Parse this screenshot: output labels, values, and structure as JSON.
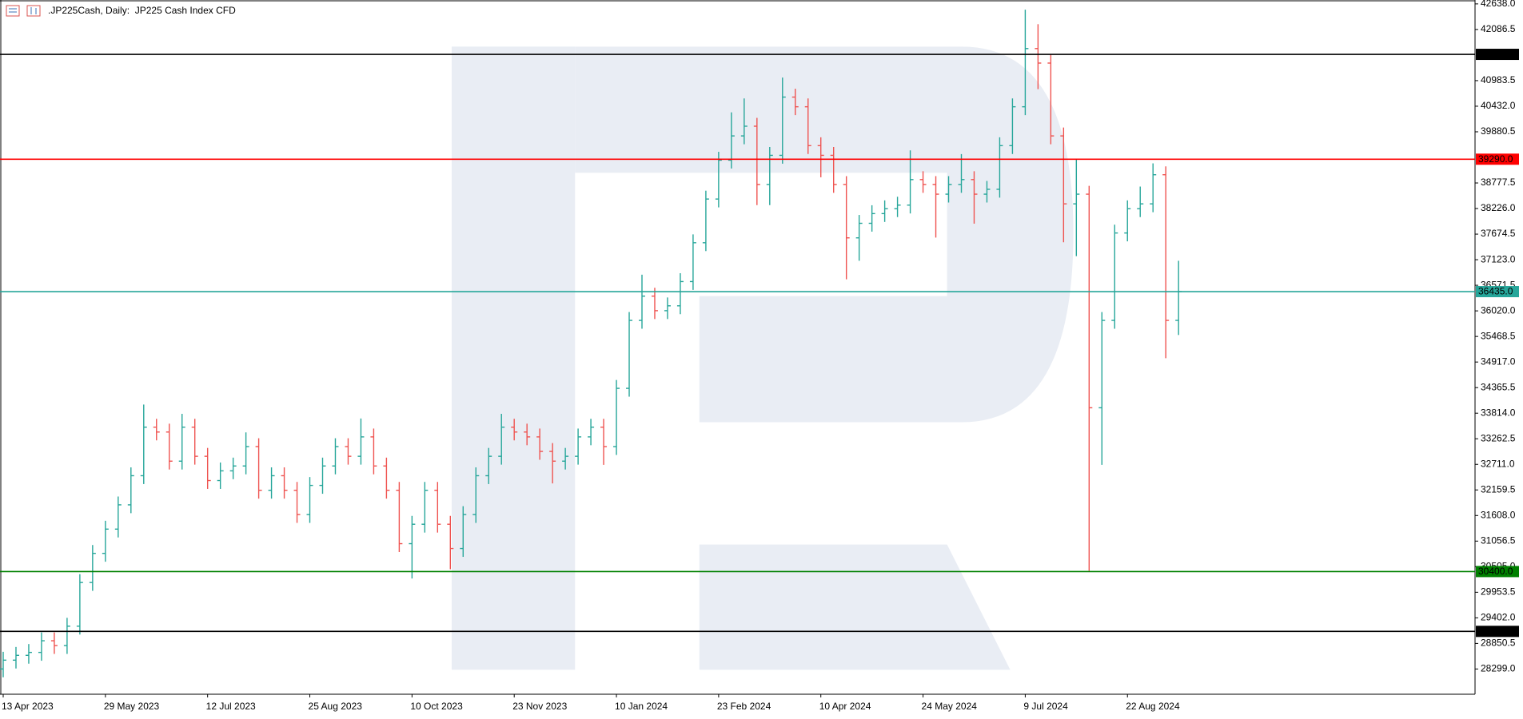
{
  "chart_data": {
    "type": "ohlc",
    "title": ".JP225Cash, Daily:  JP225 Cash Index CFD",
    "up_color": "#26a69a",
    "down_color": "#ef5350",
    "ylim": [
      27755,
      42722
    ],
    "yticks": [
      {
        "value": 42638,
        "label": "42638.0"
      },
      42086.5,
      40983.5,
      {
        "value": 40432,
        "label": "40432.0"
      },
      39880.5,
      38777.5,
      {
        "value": 38226,
        "label": "38226.0"
      },
      37674.5,
      {
        "value": 37123,
        "label": "37123.0"
      },
      36571.5,
      {
        "value": 36020,
        "label": "36020.0"
      },
      35468.5,
      {
        "value": 34917,
        "label": "34917.0"
      },
      34365.5,
      {
        "value": 33814,
        "label": "33814.0"
      },
      33262.5,
      {
        "value": 32711,
        "label": "32711.0"
      },
      32159.5,
      {
        "value": 31608,
        "label": "31608.0"
      },
      31056.5,
      {
        "value": 30505,
        "label": "30505.0"
      },
      29953.5,
      {
        "value": 29402,
        "label": "29402.0"
      },
      28850.5,
      {
        "value": 28299,
        "label": "28299.0"
      }
    ],
    "levels": [
      {
        "value": 41550,
        "label": "41550.0",
        "color": "#000000"
      },
      {
        "value": 39290,
        "label": "39290.0",
        "color": "#ff0000"
      },
      {
        "value": 36435,
        "label": "36435.0",
        "color": "#26a69a"
      },
      {
        "value": 30400,
        "label": "30400.0",
        "color": "#008000"
      },
      {
        "value": 29110,
        "label": "29110.0",
        "color": "#000000"
      }
    ],
    "categories": [
      "13 Apr 2023",
      null,
      null,
      null,
      null,
      null,
      null,
      null,
      "29 May 2023",
      null,
      null,
      null,
      null,
      null,
      null,
      null,
      "12 Jul 2023",
      null,
      null,
      null,
      null,
      null,
      null,
      null,
      "25 Aug 2023",
      null,
      null,
      null,
      null,
      null,
      null,
      null,
      "10 Oct 2023",
      null,
      null,
      null,
      null,
      null,
      null,
      null,
      "23 Nov 2023",
      null,
      null,
      null,
      null,
      null,
      null,
      null,
      "10 Jan 2024",
      null,
      null,
      null,
      null,
      null,
      null,
      null,
      "23 Feb 2024",
      null,
      null,
      null,
      null,
      null,
      null,
      null,
      "10 Apr 2024",
      null,
      null,
      null,
      null,
      null,
      null,
      null,
      "24 May 2024",
      null,
      null,
      null,
      null,
      null,
      null,
      null,
      "9 Jul 2024",
      null,
      null,
      null,
      null,
      null,
      null,
      null,
      "22 Aug 2024",
      null,
      null,
      null,
      null
    ],
    "open": [
      28300,
      28490,
      28594,
      28657,
      28908,
      28804,
      29222,
      30164,
      30792,
      31315,
      31838,
      32466,
      33513,
      33408,
      32780,
      33513,
      32885,
      32362,
      32571,
      32676,
      33094,
      32152,
      32466,
      32152,
      31629,
      32257,
      32676,
      33094,
      32885,
      33303,
      32676,
      32152,
      31001,
      31420,
      32152,
      31420,
      30897,
      31629,
      32466,
      32885,
      33513,
      33408,
      33303,
      32990,
      32780,
      32885,
      33303,
      33513,
      33094,
      34350,
      35815,
      36338,
      36024,
      36129,
      36652,
      37489,
      38431,
      39269,
      39792,
      40001,
      38745,
      39373,
      40629,
      40420,
      39582,
      39373,
      38745,
      37594,
      37908,
      38117,
      38222,
      38300,
      38850,
      38745,
      38536,
      38745,
      38850,
      38536,
      38641,
      39582,
      40420,
      41675,
      41362,
      39792,
      38327,
      38536,
      33931,
      35815,
      37699,
      38222,
      38327,
      38955,
      35815
    ],
    "high": [
      28670,
      28774,
      28837,
      29088,
      29088,
      29402,
      30344,
      30972,
      31495,
      32018,
      32646,
      34000,
      33693,
      33588,
      33800,
      33693,
      33065,
      32751,
      32856,
      33400,
      33274,
      32646,
      32646,
      32332,
      32437,
      32856,
      33274,
      33274,
      33700,
      33483,
      32856,
      32332,
      31600,
      32332,
      32332,
      31600,
      31809,
      32646,
      33065,
      33800,
      33693,
      33588,
      33483,
      33170,
      33065,
      33483,
      33693,
      33693,
      34530,
      35995,
      36800,
      36518,
      36309,
      36832,
      37669,
      38611,
      39449,
      40300,
      40600,
      40181,
      39553,
      41050,
      40809,
      40600,
      39762,
      39553,
      38925,
      38088,
      38297,
      38402,
      38480,
      39480,
      39030,
      38925,
      38925,
      39400,
      39030,
      38821,
      39762,
      40600,
      42513,
      42200,
      41542,
      39972,
      39300,
      38716,
      35995,
      37879,
      38402,
      38700,
      39200,
      39135,
      37100
    ],
    "low": [
      28120,
      28310,
      28414,
      28477,
      28624,
      28624,
      29042,
      29984,
      30612,
      31135,
      31658,
      32286,
      33228,
      32600,
      32600,
      32705,
      32182,
      32182,
      32391,
      32496,
      31972,
      31972,
      31972,
      31449,
      31449,
      32077,
      32496,
      32705,
      32705,
      32496,
      31972,
      30821,
      30250,
      31240,
      31240,
      30450,
      30717,
      31449,
      32286,
      32705,
      33228,
      33123,
      32810,
      32300,
      32600,
      32705,
      33123,
      32700,
      32914,
      34170,
      35635,
      35844,
      35844,
      35949,
      36472,
      37309,
      38251,
      39089,
      39612,
      38300,
      38300,
      39193,
      40240,
      39402,
      38900,
      38565,
      36700,
      37100,
      37728,
      37937,
      38042,
      38120,
      38565,
      37600,
      38356,
      38565,
      37900,
      38356,
      38461,
      39402,
      40240,
      40800,
      39612,
      37500,
      37200,
      30415,
      32700,
      35635,
      37519,
      38042,
      38147,
      35000,
      35500
    ],
    "close": [
      28490,
      28594,
      28657,
      28908,
      28804,
      29222,
      30164,
      30792,
      31315,
      31838,
      32466,
      33513,
      33408,
      32780,
      33513,
      32885,
      32362,
      32571,
      32676,
      33094,
      32152,
      32466,
      32152,
      31629,
      32257,
      32676,
      33094,
      32885,
      33303,
      32676,
      32152,
      31001,
      31420,
      32152,
      31420,
      30897,
      31629,
      32466,
      32885,
      33513,
      33408,
      33303,
      32990,
      32780,
      32885,
      33303,
      33513,
      33094,
      34350,
      35815,
      36338,
      36024,
      36129,
      36652,
      37489,
      38431,
      39269,
      39792,
      40001,
      38745,
      39373,
      40629,
      40420,
      39582,
      39373,
      38745,
      37594,
      37908,
      38117,
      38222,
      38300,
      38850,
      38745,
      38536,
      38745,
      38850,
      38536,
      38641,
      39582,
      40420,
      41675,
      41362,
      39792,
      38327,
      38536,
      33931,
      35815,
      37699,
      38222,
      38327,
      38955,
      35815,
      36435
    ]
  }
}
